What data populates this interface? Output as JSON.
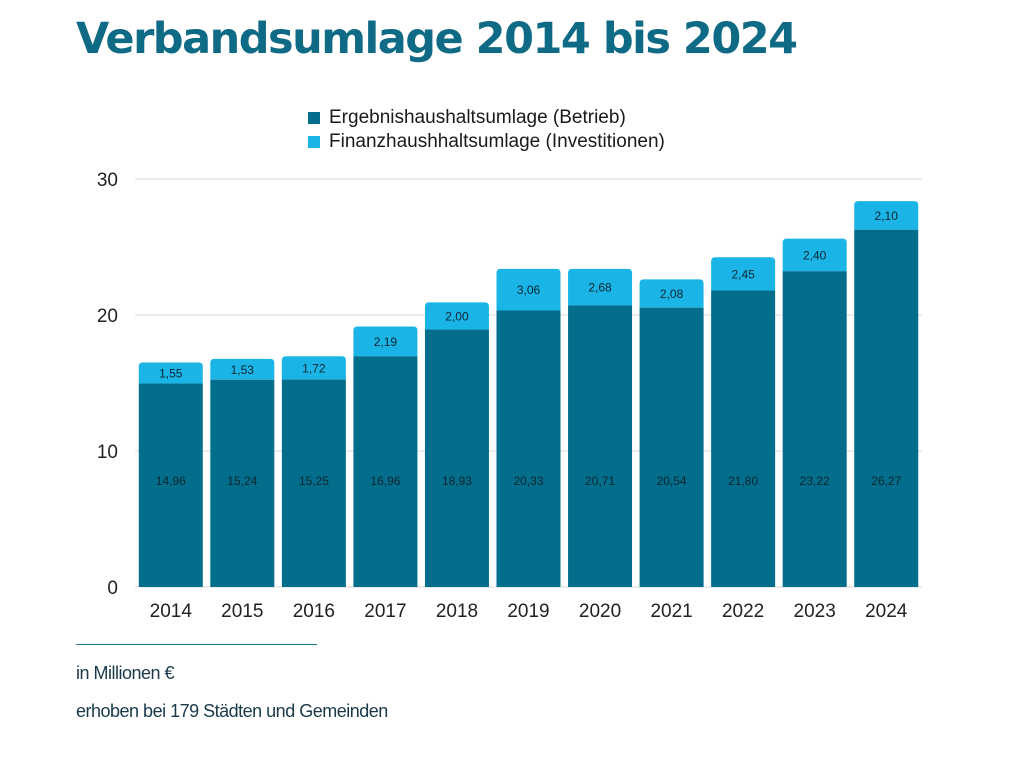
{
  "title": "Verbandsumlage 2014 bis 2024",
  "colors": {
    "title": "#0f6a86",
    "series_1": "#036e8c",
    "series_2": "#1ab5e6",
    "grid": "#d9d9d9"
  },
  "footnotes": {
    "unit": "in Millionen €",
    "source": "erhoben bei 179 Städten und Gemeinden"
  },
  "chart_data": {
    "type": "bar",
    "stacked": true,
    "categories": [
      "2014",
      "2015",
      "2016",
      "2017",
      "2018",
      "2019",
      "2020",
      "2021",
      "2022",
      "2023",
      "2024"
    ],
    "series": [
      {
        "name": "Ergebnishaushaltsumlage (Betrieb)",
        "color": "#036e8c",
        "values": [
          14.96,
          15.24,
          15.25,
          16.96,
          18.93,
          20.33,
          20.71,
          20.54,
          21.8,
          23.22,
          26.27
        ],
        "labels": [
          "14,96",
          "15,24",
          "15,25",
          "16,96",
          "18,93",
          "20,33",
          "20,71",
          "20,54",
          "21,80",
          "23,22",
          "26,27"
        ]
      },
      {
        "name": "Finanzhaushhaltsumlage (Investitionen)",
        "color": "#1ab5e6",
        "values": [
          1.55,
          1.53,
          1.72,
          2.19,
          2.0,
          3.06,
          2.68,
          2.08,
          2.45,
          2.4,
          2.1
        ],
        "labels": [
          "1,55",
          "1,53",
          "1,72",
          "2,19",
          "2,00",
          "3,06",
          "2,68",
          "2,08",
          "2,45",
          "2,40",
          "2,10"
        ]
      }
    ],
    "ylim": [
      0,
      30
    ],
    "yticks": [
      0,
      10,
      20,
      30
    ],
    "grid": true,
    "legend": "top-center"
  }
}
